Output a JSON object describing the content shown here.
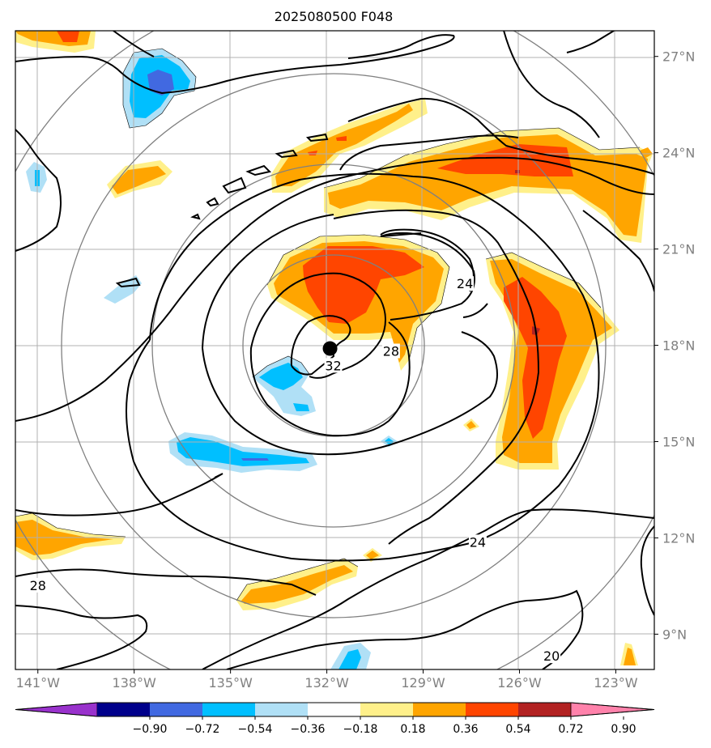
{
  "title": "2025080500 F048",
  "map": {
    "lon_range": [
      -141.7,
      -121.8
    ],
    "lat_range": [
      7.9,
      27.8
    ],
    "lat_ticks": [
      {
        "value": 9,
        "label": "9°N"
      },
      {
        "value": 12,
        "label": "12°N"
      },
      {
        "value": 15,
        "label": "15°N"
      },
      {
        "value": 18,
        "label": "18°N"
      },
      {
        "value": 21,
        "label": "21°N"
      },
      {
        "value": 24,
        "label": "24°N"
      },
      {
        "value": 27,
        "label": "27°N"
      }
    ],
    "lon_ticks": [
      {
        "value": -141,
        "label": "141°W"
      },
      {
        "value": -138,
        "label": "138°W"
      },
      {
        "value": -135,
        "label": "135°W"
      },
      {
        "value": -132,
        "label": "132°W"
      },
      {
        "value": -129,
        "label": "129°W"
      },
      {
        "value": -126,
        "label": "126°W"
      },
      {
        "value": -123,
        "label": "123°W"
      }
    ],
    "storm_center": {
      "lon": -131.9,
      "lat": 17.9
    },
    "range_ring_radii_deg": [
      2.8,
      5.6,
      8.4,
      11.2
    ],
    "contour_labels": [
      {
        "text": "32",
        "lon": -131.8,
        "lat": 17.35
      },
      {
        "text": "28",
        "lon": -130.0,
        "lat": 17.8
      },
      {
        "text": "24",
        "lon": -127.7,
        "lat": 19.9
      },
      {
        "text": "24",
        "lon": -127.3,
        "lat": 11.85
      },
      {
        "text": "28",
        "lon": -141.0,
        "lat": 10.5
      },
      {
        "text": "20",
        "lon": -125.0,
        "lat": 8.3
      }
    ]
  },
  "colorbar": {
    "levels": [
      "−0.90",
      "−0.72",
      "−0.54",
      "−0.36",
      "−0.18",
      "0.18",
      "0.36",
      "0.54",
      "0.72",
      "0.90"
    ],
    "colors": {
      "below": "#9932cc",
      "bins": [
        "#9932cc",
        "#00008b",
        "#4169e1",
        "#00bfff",
        "#b0e0f6",
        "#ffffff",
        "#fff08a",
        "#ffa500",
        "#ff4500",
        "#b22222",
        "#ff82ab"
      ],
      "above": "#ff82ab"
    }
  }
}
